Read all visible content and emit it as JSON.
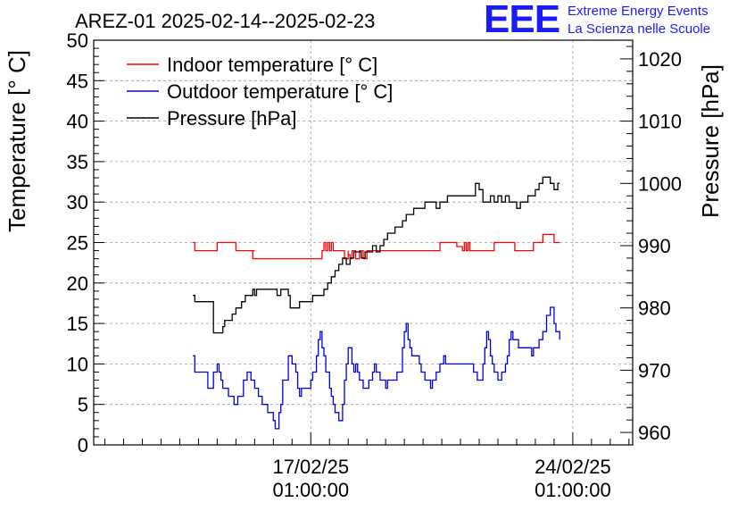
{
  "header": {
    "title": "AREZ-01 2025-02-14--2025-02-23"
  },
  "logo": {
    "mark": "EEE",
    "line1": "Extreme Energy Events",
    "line2": "La Scienza nelle Scuole",
    "color": "#1a1aff"
  },
  "chart_data": {
    "type": "line",
    "title": "AREZ-01 2025-02-14--2025-02-23",
    "ylabel": "Temperature [° C]",
    "y2label": "Pressure [hPa]",
    "xlabel": "",
    "x_unit": "days (17/02/25 01:00:00 = 0)",
    "xlim": [
      -5.8,
      8.6
    ],
    "ylim": [
      0,
      50
    ],
    "y2lim": [
      958,
      1023
    ],
    "x_ticks": [
      {
        "x": 0,
        "date": "17/02/25",
        "time": "01:00:00"
      },
      {
        "x": 7,
        "date": "24/02/25",
        "time": "01:00:00"
      }
    ],
    "y_ticks": [
      0,
      5,
      10,
      15,
      20,
      25,
      30,
      35,
      40,
      45,
      50
    ],
    "y2_ticks": [
      960,
      970,
      980,
      990,
      1000,
      1010,
      1020
    ],
    "grid": true,
    "legend_position": "top-left",
    "series": [
      {
        "name": "Indoor temperature [° C]",
        "axis": "left",
        "color": "#ff0000",
        "x": [
          -3.15,
          -3.1,
          -2.5,
          -2.5,
          -2.0,
          -2.0,
          -1.5,
          -1.55,
          -1.55,
          -0.2,
          -0.2,
          0.3,
          0.35,
          0.4,
          0.45,
          0.5,
          0.55,
          0.6,
          0.6,
          0.85,
          0.9,
          1.0,
          1.0,
          1.05,
          1.1,
          1.2,
          1.3,
          1.4,
          1.5,
          1.55,
          3.4,
          3.45,
          3.9,
          4.05,
          4.1,
          4.15,
          4.2,
          4.25,
          4.3,
          4.85,
          4.9,
          5.4,
          5.45,
          5.5,
          5.95,
          6.15,
          6.2,
          6.45,
          6.5,
          6.65
        ],
        "values": [
          25,
          24,
          25,
          25,
          24,
          24,
          24,
          23.5,
          23,
          23,
          23,
          24,
          25,
          24,
          25,
          24,
          25,
          24,
          24,
          24,
          23,
          24,
          23.5,
          23,
          24,
          23,
          24,
          23,
          24,
          24,
          24,
          25,
          24.5,
          24,
          25,
          24,
          25,
          24,
          24,
          24,
          25,
          25,
          24,
          24,
          25,
          25,
          26,
          26,
          25,
          25
        ]
      },
      {
        "name": "Outdoor temperature [° C]",
        "axis": "left",
        "color": "#0000dd",
        "x": [
          -3.15,
          -3.1,
          -2.75,
          -2.6,
          -2.5,
          -2.45,
          -2.4,
          -2.35,
          -2.3,
          -2.25,
          -2.2,
          -2.1,
          -2.05,
          -2.0,
          -1.95,
          -1.8,
          -1.7,
          -1.6,
          -1.5,
          -1.4,
          -1.35,
          -1.3,
          -1.15,
          -1.1,
          -1.0,
          -0.95,
          -0.85,
          -0.8,
          -0.75,
          -0.6,
          -0.55,
          -0.5,
          -0.4,
          -0.35,
          -0.3,
          -0.25,
          -0.2,
          -0.15,
          -0.05,
          0.0,
          0.05,
          0.1,
          0.15,
          0.2,
          0.25,
          0.3,
          0.35,
          0.4,
          0.5,
          0.55,
          0.6,
          0.65,
          0.7,
          0.75,
          0.8,
          0.85,
          0.9,
          0.95,
          1.0,
          1.05,
          1.1,
          1.15,
          1.2,
          1.25,
          1.3,
          1.35,
          1.4,
          1.45,
          1.5,
          1.55,
          1.6,
          1.65,
          1.7,
          1.75,
          1.85,
          1.95,
          2.0,
          2.05,
          2.1,
          2.15,
          2.3,
          2.45,
          2.5,
          2.55,
          2.6,
          2.65,
          2.7,
          2.8,
          2.9,
          2.95,
          3.0,
          3.05,
          3.1,
          3.15,
          3.2,
          3.25,
          3.3,
          3.35,
          3.45,
          3.55,
          3.6,
          4.35,
          4.45,
          4.5,
          4.6,
          4.65,
          4.7,
          4.75,
          4.8,
          4.85,
          4.9,
          5.0,
          5.05,
          5.1,
          5.2,
          5.25,
          5.3,
          5.35,
          5.4,
          5.5,
          5.55,
          5.6,
          5.65,
          5.75,
          5.85,
          5.9,
          5.95,
          6.05,
          6.1,
          6.2,
          6.3,
          6.4,
          6.5,
          6.55,
          6.65
        ],
        "values": [
          11,
          9,
          7,
          9,
          10,
          9,
          8,
          7,
          7,
          7,
          6,
          6,
          5,
          5,
          6,
          8,
          9,
          8,
          7,
          6,
          6,
          5,
          4,
          4,
          3,
          2,
          4,
          5,
          8,
          11,
          11,
          10,
          9,
          7,
          6,
          7,
          7,
          7,
          7,
          8,
          9,
          9,
          11,
          13,
          14,
          12,
          11,
          9,
          7,
          6,
          5,
          4,
          4,
          3,
          3,
          5,
          8,
          10,
          12,
          12,
          10,
          9,
          10,
          9,
          8,
          8,
          7,
          7,
          7,
          8,
          8,
          9,
          10,
          9,
          8,
          8,
          7,
          8,
          8,
          8,
          9,
          12,
          14,
          15,
          13,
          12,
          11,
          11,
          10,
          9,
          9,
          8,
          8,
          8,
          7,
          8,
          8,
          9,
          10,
          11,
          10,
          9,
          8,
          8,
          10,
          12,
          14,
          13,
          11,
          10,
          9,
          8,
          8,
          9,
          10,
          11,
          13,
          14,
          13,
          13,
          12,
          12,
          12,
          12,
          12,
          11,
          12,
          12,
          13,
          14,
          16,
          17,
          15,
          14,
          13
        ]
      },
      {
        "name": "Pressure [hPa]",
        "axis": "right",
        "color": "#000000",
        "x": [
          -3.15,
          -3.1,
          -2.6,
          -2.45,
          -2.35,
          -2.3,
          -2.2,
          -2.1,
          -2.0,
          -1.9,
          -1.85,
          -1.75,
          -1.65,
          -1.55,
          -1.5,
          -1.45,
          -1.35,
          -1.15,
          -1.0,
          -0.9,
          -0.8,
          -0.6,
          -0.55,
          -0.45,
          -0.3,
          -0.2,
          -0.1,
          0.05,
          0.15,
          0.25,
          0.35,
          0.45,
          0.55,
          0.65,
          0.75,
          0.85,
          0.95,
          1.05,
          1.15,
          1.25,
          1.35,
          1.45,
          1.55,
          1.65,
          1.75,
          1.85,
          1.95,
          2.05,
          2.15,
          2.25,
          2.35,
          2.45,
          2.55,
          2.65,
          2.75,
          2.85,
          2.95,
          3.05,
          3.15,
          3.25,
          3.35,
          3.45,
          3.55,
          3.65,
          4.4,
          4.5,
          4.6,
          4.7,
          4.8,
          4.9,
          5.0,
          5.1,
          5.2,
          5.3,
          5.4,
          5.5,
          5.6,
          5.7,
          5.8,
          5.9,
          6.0,
          6.1,
          6.2,
          6.3,
          6.4,
          6.5,
          6.6,
          6.65
        ],
        "values": [
          982,
          981,
          976,
          976,
          977,
          978,
          978,
          979,
          980,
          980,
          981,
          982,
          982,
          983,
          982,
          983,
          983,
          983,
          983,
          982,
          983,
          982,
          980,
          980,
          981,
          981,
          981,
          982,
          982,
          982,
          983,
          984,
          985,
          986,
          987,
          988,
          987,
          988,
          989,
          989,
          988,
          989,
          989,
          990,
          989,
          990,
          991,
          992,
          992,
          993,
          993,
          994,
          995,
          995,
          996,
          996,
          996,
          997,
          997,
          997,
          996,
          997,
          997,
          998,
          1000,
          999,
          997,
          997,
          998,
          997,
          998,
          997,
          998,
          997,
          997,
          996,
          997,
          997,
          998,
          998,
          999,
          1000,
          1001,
          1001,
          1000,
          999,
          1000,
          1000
        ]
      }
    ]
  }
}
